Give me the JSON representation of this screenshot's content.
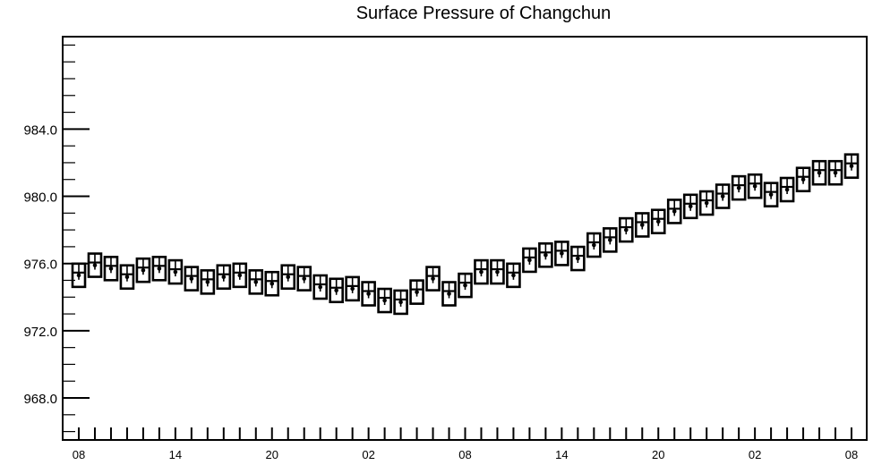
{
  "chart_data": {
    "type": "box",
    "title": "Surface Pressure of Changchun",
    "xlabel": "",
    "ylabel": "",
    "ylim": [
      965.5,
      989.5
    ],
    "y_ticks": [
      968.0,
      972.0,
      976.0,
      980.0,
      984.0
    ],
    "x_tick_labels": [
      "08",
      "14",
      "20",
      "02",
      "08",
      "14",
      "20",
      "02",
      "08"
    ],
    "grid": false,
    "series": [
      {
        "values": [
          975.3,
          975.9,
          975.7,
          975.2,
          975.6,
          975.7,
          975.5,
          975.1,
          974.9,
          975.2,
          975.3,
          974.9,
          974.8,
          975.2,
          975.1,
          974.6,
          974.4,
          974.5,
          974.2,
          973.8,
          973.7,
          974.3,
          975.1,
          974.2,
          974.7,
          975.5,
          975.5,
          975.3,
          976.2,
          976.5,
          976.6,
          976.3,
          977.1,
          977.4,
          978.0,
          978.3,
          978.5,
          979.1,
          979.4,
          979.6,
          980.0,
          980.5,
          980.6,
          980.1,
          980.4,
          981.0,
          981.4,
          981.4,
          981.8
        ]
      }
    ]
  }
}
